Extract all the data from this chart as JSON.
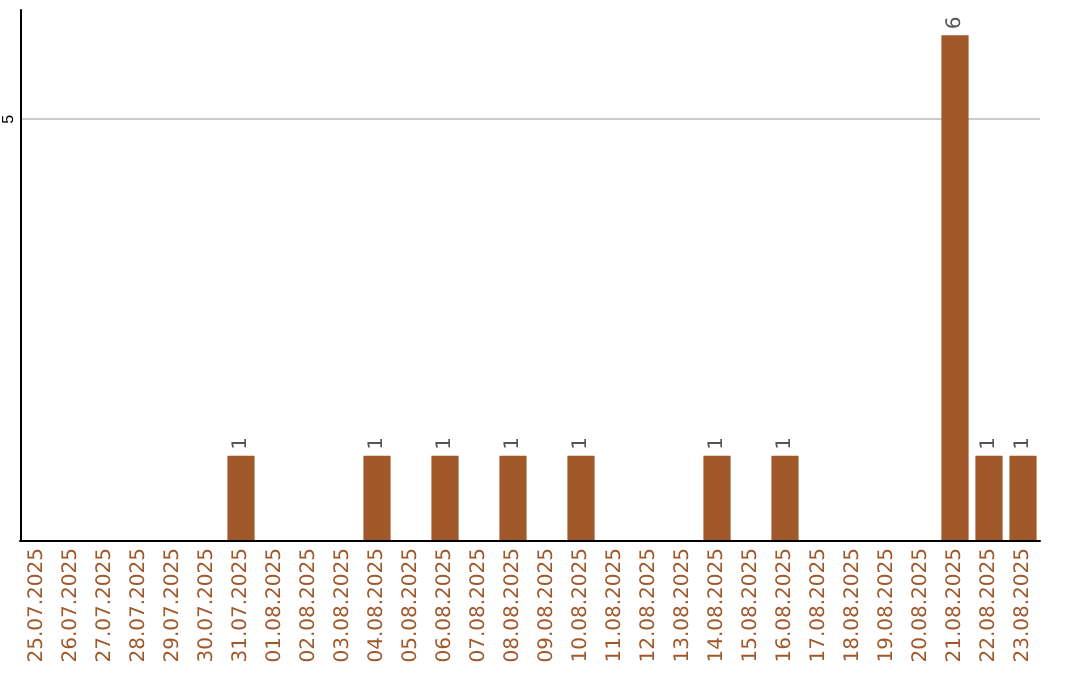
{
  "chart_data": {
    "type": "bar",
    "categories": [
      "25.07.2025",
      "26.07.2025",
      "27.07.2025",
      "28.07.2025",
      "29.07.2025",
      "30.07.2025",
      "31.07.2025",
      "01.08.2025",
      "02.08.2025",
      "03.08.2025",
      "04.08.2025",
      "05.08.2025",
      "06.08.2025",
      "07.08.2025",
      "08.08.2025",
      "09.08.2025",
      "10.08.2025",
      "11.08.2025",
      "12.08.2025",
      "13.08.2025",
      "14.08.2025",
      "15.08.2025",
      "16.08.2025",
      "17.08.2025",
      "18.08.2025",
      "19.08.2025",
      "20.08.2025",
      "21.08.2025",
      "22.08.2025",
      "23.08.2025"
    ],
    "values": [
      0,
      0,
      0,
      0,
      0,
      0,
      1,
      0,
      0,
      0,
      1,
      0,
      1,
      0,
      1,
      0,
      1,
      0,
      0,
      0,
      1,
      0,
      1,
      0,
      0,
      0,
      0,
      6,
      1,
      1
    ],
    "value_labels": [
      null,
      null,
      null,
      null,
      null,
      null,
      "1",
      null,
      null,
      null,
      "1",
      null,
      "1",
      null,
      "1",
      null,
      "1",
      null,
      null,
      null,
      "1",
      null,
      "1",
      null,
      null,
      null,
      null,
      "6",
      "1",
      "1"
    ],
    "color": "#a0582a",
    "ylim": [
      0,
      6.3
    ],
    "yticks": [
      5
    ],
    "grid": "y"
  }
}
